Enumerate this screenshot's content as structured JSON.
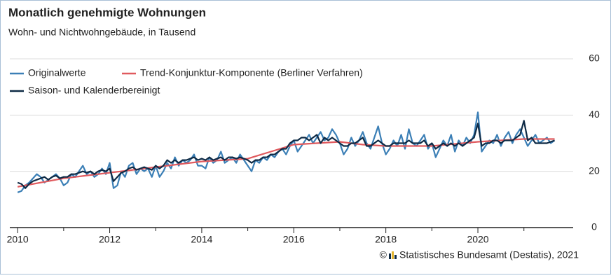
{
  "chart_data": {
    "type": "line",
    "title": "Monatlich genehmigte Wohnungen",
    "subtitle": "Wohn- und Nichtwohngebäude, in Tausend",
    "source_prefix": "©",
    "source": "Statistisches Bundesamt (Destatis), 2021",
    "xlim": [
      2009.83,
      2022.07
    ],
    "xticks": [
      2010,
      2012,
      2014,
      2016,
      2018,
      2020
    ],
    "x_minor_ticks": [
      2011,
      2013,
      2015,
      2017,
      2019,
      2021
    ],
    "ylim": [
      0,
      60
    ],
    "yticks": [
      0,
      20,
      40,
      60
    ],
    "grid": true,
    "y_axis_side": "right",
    "legend": "top-left",
    "x": [
      2010,
      2010.083,
      2010.167,
      2010.25,
      2010.333,
      2010.417,
      2010.5,
      2010.583,
      2010.667,
      2010.75,
      2010.833,
      2010.917,
      2011,
      2011.083,
      2011.167,
      2011.25,
      2011.333,
      2011.417,
      2011.5,
      2011.583,
      2011.667,
      2011.75,
      2011.833,
      2011.917,
      2012,
      2012.083,
      2012.167,
      2012.25,
      2012.333,
      2012.417,
      2012.5,
      2012.583,
      2012.667,
      2012.75,
      2012.833,
      2012.917,
      2013,
      2013.083,
      2013.167,
      2013.25,
      2013.333,
      2013.417,
      2013.5,
      2013.583,
      2013.667,
      2013.75,
      2013.833,
      2013.917,
      2014,
      2014.083,
      2014.167,
      2014.25,
      2014.333,
      2014.417,
      2014.5,
      2014.583,
      2014.667,
      2014.75,
      2014.833,
      2014.917,
      2015,
      2015.083,
      2015.167,
      2015.25,
      2015.333,
      2015.417,
      2015.5,
      2015.583,
      2015.667,
      2015.75,
      2015.833,
      2015.917,
      2016,
      2016.083,
      2016.167,
      2016.25,
      2016.333,
      2016.417,
      2016.5,
      2016.583,
      2016.667,
      2016.75,
      2016.833,
      2016.917,
      2017,
      2017.083,
      2017.167,
      2017.25,
      2017.333,
      2017.417,
      2017.5,
      2017.583,
      2017.667,
      2017.75,
      2017.833,
      2017.917,
      2018,
      2018.083,
      2018.167,
      2018.25,
      2018.333,
      2018.417,
      2018.5,
      2018.583,
      2018.667,
      2018.75,
      2018.833,
      2018.917,
      2019,
      2019.083,
      2019.167,
      2019.25,
      2019.333,
      2019.417,
      2019.5,
      2019.583,
      2019.667,
      2019.75,
      2019.833,
      2019.917,
      2020,
      2020.083,
      2020.167,
      2020.25,
      2020.333,
      2020.417,
      2020.5,
      2020.583,
      2020.667,
      2020.75,
      2020.833,
      2020.917,
      2021,
      2021.083,
      2021.167,
      2021.25,
      2021.333,
      2021.417,
      2021.5,
      2021.583,
      2021.667
    ],
    "series": [
      {
        "name": "Originalwerte",
        "color": "#3b7fb6",
        "values": [
          12.5,
          13,
          15,
          16,
          17.5,
          19,
          18,
          16,
          17,
          18,
          19,
          17.5,
          15,
          16,
          19,
          18,
          20,
          22,
          19,
          20,
          18,
          19,
          21,
          19,
          23,
          14,
          15,
          20,
          18,
          22,
          23,
          19,
          21,
          20,
          21,
          18,
          22,
          18,
          20,
          23,
          21,
          25,
          22,
          24,
          23,
          24,
          26,
          22,
          22,
          21,
          25,
          23,
          24,
          27,
          23,
          24,
          25,
          23,
          26,
          24,
          22,
          20,
          24,
          23,
          25,
          24,
          26,
          25,
          27,
          28,
          26,
          29,
          31,
          27,
          29,
          31,
          33,
          30,
          32,
          34,
          31,
          32,
          35,
          33,
          30,
          26,
          28,
          32,
          29,
          31,
          34,
          30,
          28,
          32,
          36,
          30,
          26,
          28,
          31,
          29,
          33,
          28,
          35,
          30,
          29,
          31,
          33,
          28,
          30,
          25,
          28,
          31,
          29,
          33,
          27,
          31,
          29,
          32,
          30,
          33,
          41,
          27,
          29,
          31,
          30,
          33,
          29,
          32,
          34,
          30,
          33,
          35,
          32,
          29,
          31,
          33,
          30,
          31,
          32,
          30,
          31
        ]
      },
      {
        "name": "Trend-Konjunktur-Komponente (Berliner Verfahren)",
        "color": "#e05a5e",
        "x": [
          2010,
          2011,
          2012,
          2013,
          2014,
          2015,
          2016,
          2017,
          2017.5,
          2018,
          2019,
          2020,
          2021,
          2021.667
        ],
        "values": [
          14.5,
          17.5,
          19.5,
          21.5,
          23.5,
          24.5,
          29.5,
          30.5,
          29.5,
          29,
          29,
          30.5,
          31.5,
          31.5
        ]
      },
      {
        "name": "Saison- und Kalenderbereinigt",
        "color": "#0e2a45",
        "values": [
          16,
          15.5,
          14,
          15.5,
          16.5,
          17,
          17.5,
          18,
          17,
          18,
          18.5,
          17.5,
          18,
          18,
          19,
          19,
          19.5,
          20,
          19.5,
          20,
          19,
          20,
          20.5,
          20,
          21,
          16.5,
          18,
          19.5,
          20,
          21,
          21.5,
          20.5,
          21,
          21.5,
          21,
          20.5,
          22,
          21,
          22,
          24,
          23,
          24,
          23,
          24,
          24,
          24.5,
          25,
          24,
          24.5,
          24,
          25,
          24,
          24.5,
          25,
          24,
          25,
          25,
          24.5,
          25,
          24.5,
          24,
          23,
          24,
          24,
          25,
          25,
          26,
          26,
          27,
          28,
          28,
          30,
          31,
          31,
          32,
          32,
          31,
          32,
          33,
          30,
          32,
          31,
          32,
          31,
          30,
          29,
          29,
          30,
          30,
          31,
          32,
          29,
          29,
          30,
          31,
          30,
          29,
          29,
          30,
          30,
          30,
          30,
          31,
          30,
          30,
          30,
          31,
          29,
          30,
          28,
          29,
          30,
          29,
          30,
          29,
          30,
          29,
          30,
          31,
          32,
          37,
          29,
          30,
          30,
          31,
          31,
          30,
          31,
          31,
          31,
          32,
          33,
          38,
          31,
          32,
          30,
          30,
          30,
          30,
          30.5,
          31
        ]
      }
    ]
  }
}
